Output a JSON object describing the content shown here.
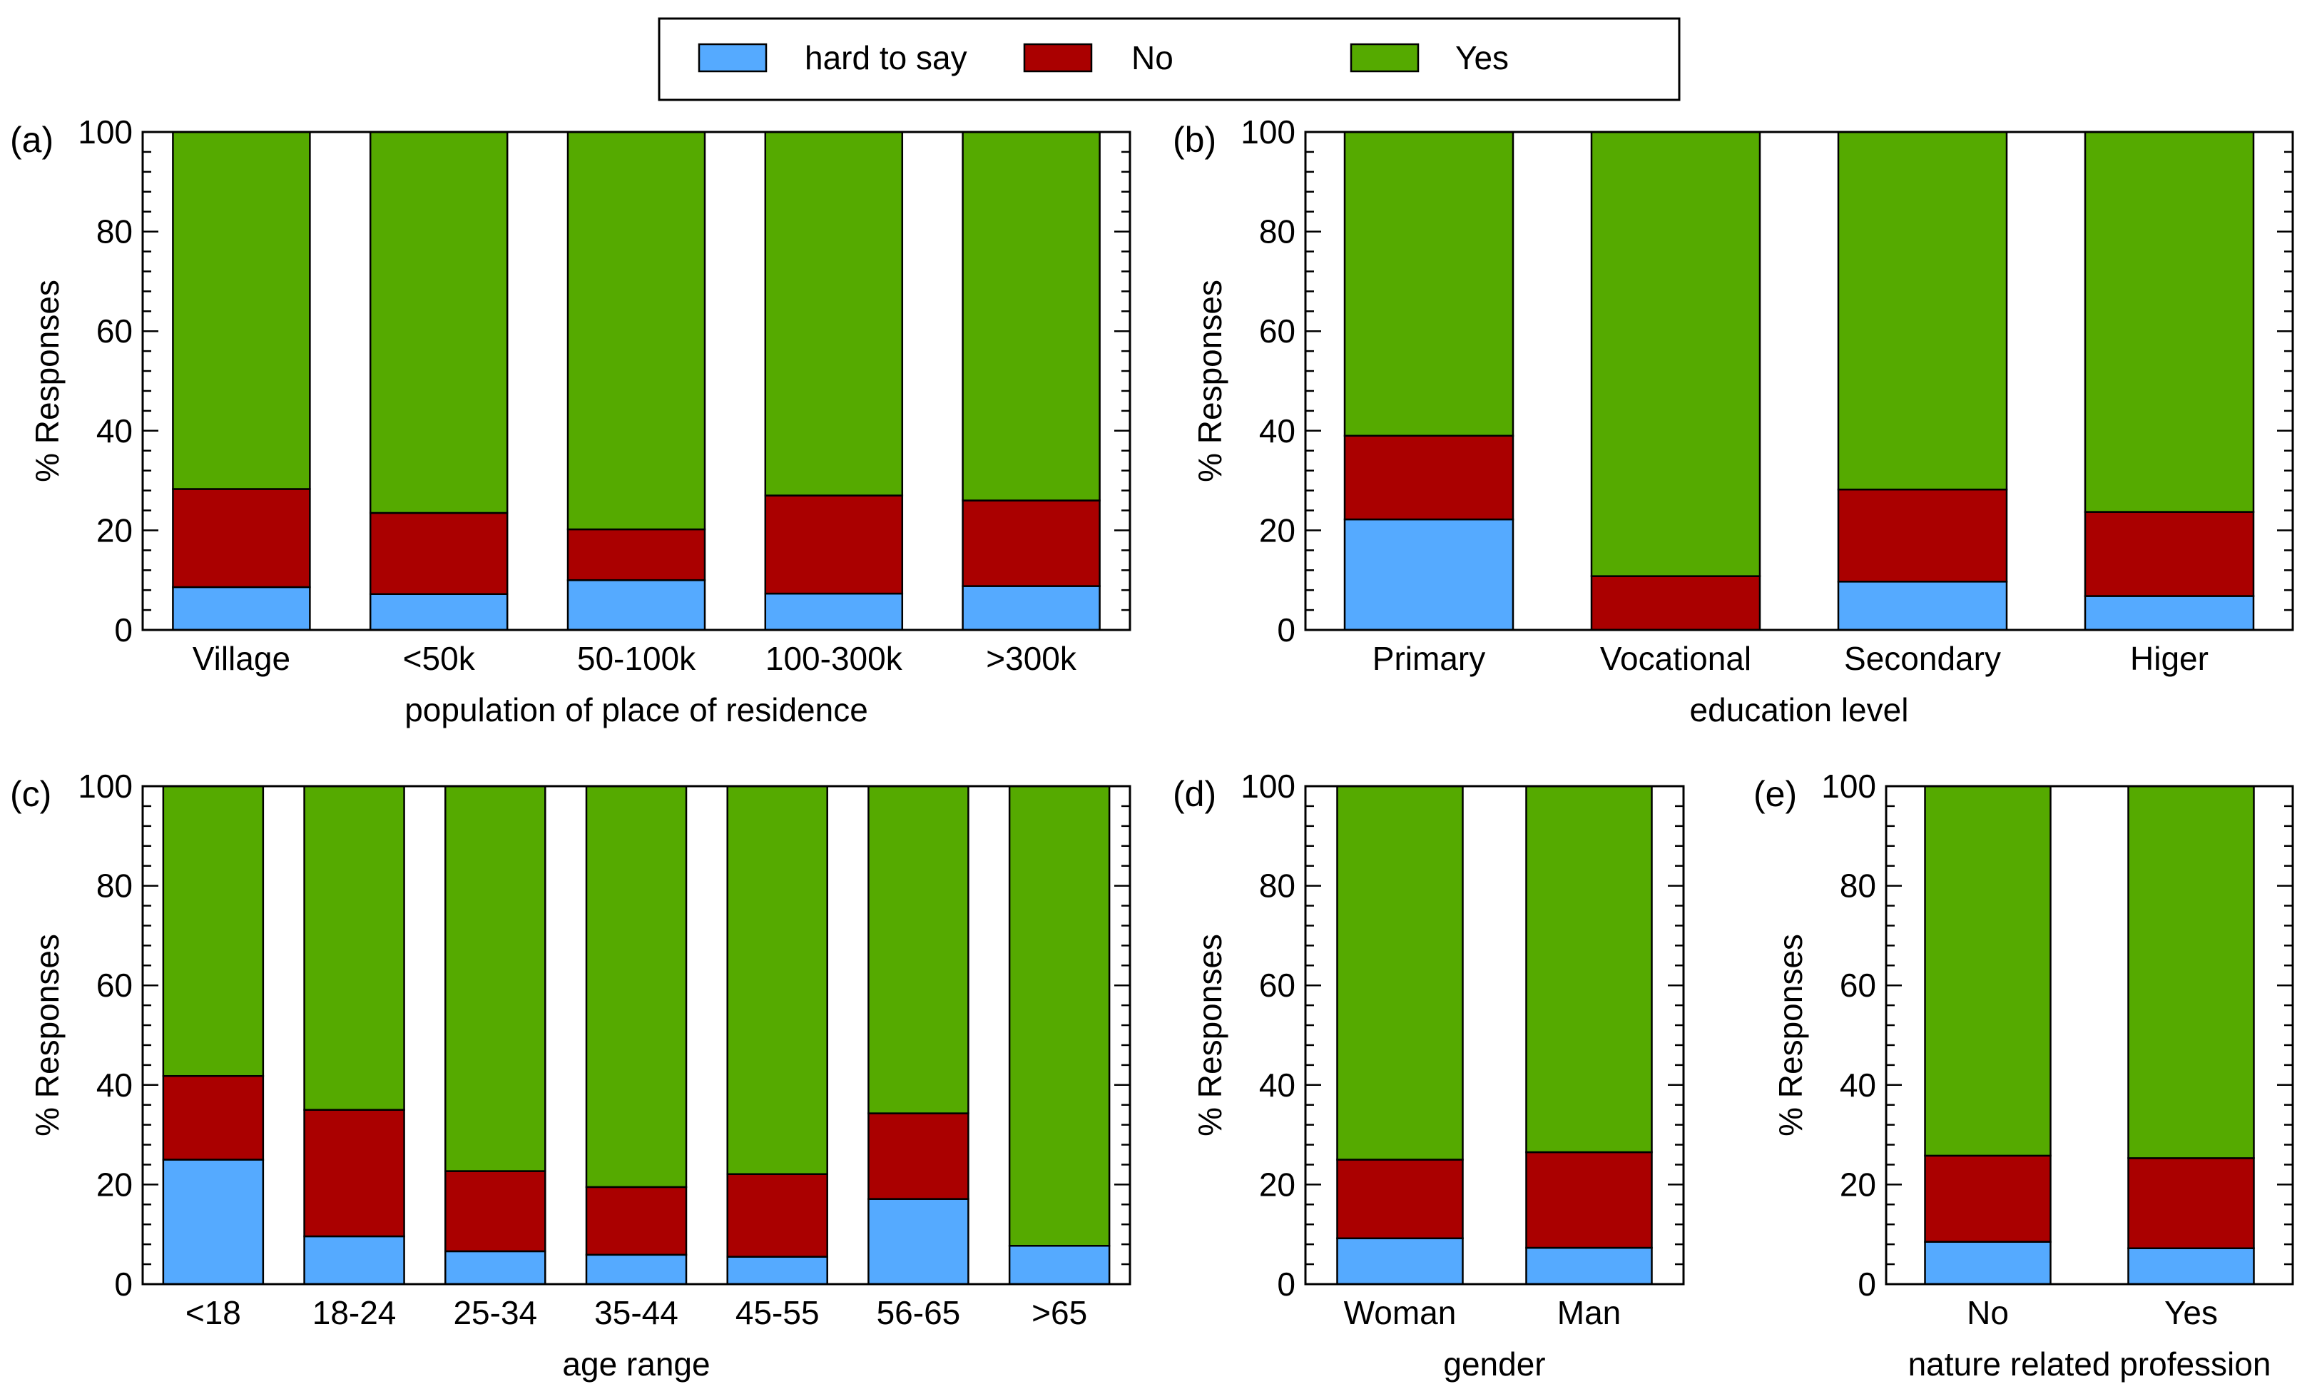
{
  "colors": {
    "hard_to_say": "#55aaff",
    "no": "#aa0000",
    "yes": "#55aa00",
    "axis": "#000000",
    "background": "#ffffff"
  },
  "legend": {
    "entries": [
      {
        "key": "hard_to_say",
        "label": "hard to say"
      },
      {
        "key": "no",
        "label": "No"
      },
      {
        "key": "yes",
        "label": "Yes"
      }
    ]
  },
  "chart_data": [
    {
      "type": "bar",
      "stacked": true,
      "panel_label": "(a)",
      "categories": [
        "Village",
        "<50k",
        "50-100k",
        "100-300k",
        ">300k"
      ],
      "series": [
        {
          "name": "hard to say",
          "values": [
            8.6,
            7.2,
            10.0,
            7.3,
            8.8
          ]
        },
        {
          "name": "No",
          "values": [
            19.7,
            16.3,
            10.2,
            19.7,
            17.2
          ]
        },
        {
          "name": "Yes",
          "values": [
            71.7,
            76.5,
            79.8,
            73.0,
            74.0
          ]
        }
      ],
      "xlabel": "population of place of residence",
      "ylabel": "% Responses",
      "yticks": [
        0,
        20,
        40,
        60,
        80,
        100
      ],
      "ylim": [
        0,
        100
      ]
    },
    {
      "type": "bar",
      "stacked": true,
      "panel_label": "(b)",
      "categories": [
        "Primary",
        "Vocational",
        "Secondary",
        "Higer"
      ],
      "series": [
        {
          "name": "hard to say",
          "values": [
            22.2,
            0.0,
            9.7,
            6.8
          ]
        },
        {
          "name": "No",
          "values": [
            16.8,
            10.8,
            18.5,
            16.9
          ]
        },
        {
          "name": "Yes",
          "values": [
            61.0,
            89.2,
            71.8,
            76.3
          ]
        }
      ],
      "xlabel": "education level",
      "ylabel": "% Responses",
      "yticks": [
        0,
        20,
        40,
        60,
        80,
        100
      ],
      "ylim": [
        0,
        100
      ]
    },
    {
      "type": "bar",
      "stacked": true,
      "panel_label": "(c)",
      "categories": [
        "<18",
        "18-24",
        "25-34",
        "35-44",
        "45-55",
        "56-65",
        ">65"
      ],
      "series": [
        {
          "name": "hard to say",
          "values": [
            25.0,
            9.6,
            6.6,
            5.9,
            5.5,
            17.1,
            7.7
          ]
        },
        {
          "name": "No",
          "values": [
            16.8,
            25.4,
            16.1,
            13.6,
            16.6,
            17.2,
            0.0
          ]
        },
        {
          "name": "Yes",
          "values": [
            58.2,
            65.0,
            77.3,
            80.5,
            77.9,
            65.7,
            92.3
          ]
        }
      ],
      "xlabel": "age range",
      "ylabel": "% Responses",
      "yticks": [
        0,
        20,
        40,
        60,
        80,
        100
      ],
      "ylim": [
        0,
        100
      ]
    },
    {
      "type": "bar",
      "stacked": true,
      "panel_label": "(d)",
      "categories": [
        "Woman",
        "Man"
      ],
      "series": [
        {
          "name": "hard to say",
          "values": [
            9.2,
            7.3
          ]
        },
        {
          "name": "No",
          "values": [
            15.8,
            19.2
          ]
        },
        {
          "name": "Yes",
          "values": [
            75.0,
            73.5
          ]
        }
      ],
      "xlabel": "gender",
      "ylabel": "% Responses",
      "yticks": [
        0,
        20,
        40,
        60,
        80,
        100
      ],
      "ylim": [
        0,
        100
      ]
    },
    {
      "type": "bar",
      "stacked": true,
      "panel_label": "(e)",
      "categories": [
        "No",
        "Yes"
      ],
      "series": [
        {
          "name": "hard to say",
          "values": [
            8.5,
            7.2
          ]
        },
        {
          "name": "No",
          "values": [
            17.3,
            18.1
          ]
        },
        {
          "name": "Yes",
          "values": [
            74.2,
            74.7
          ]
        }
      ],
      "xlabel": "nature related profession",
      "ylabel": "% Responses",
      "yticks": [
        0,
        20,
        40,
        60,
        80,
        100
      ],
      "ylim": [
        0,
        100
      ]
    }
  ]
}
